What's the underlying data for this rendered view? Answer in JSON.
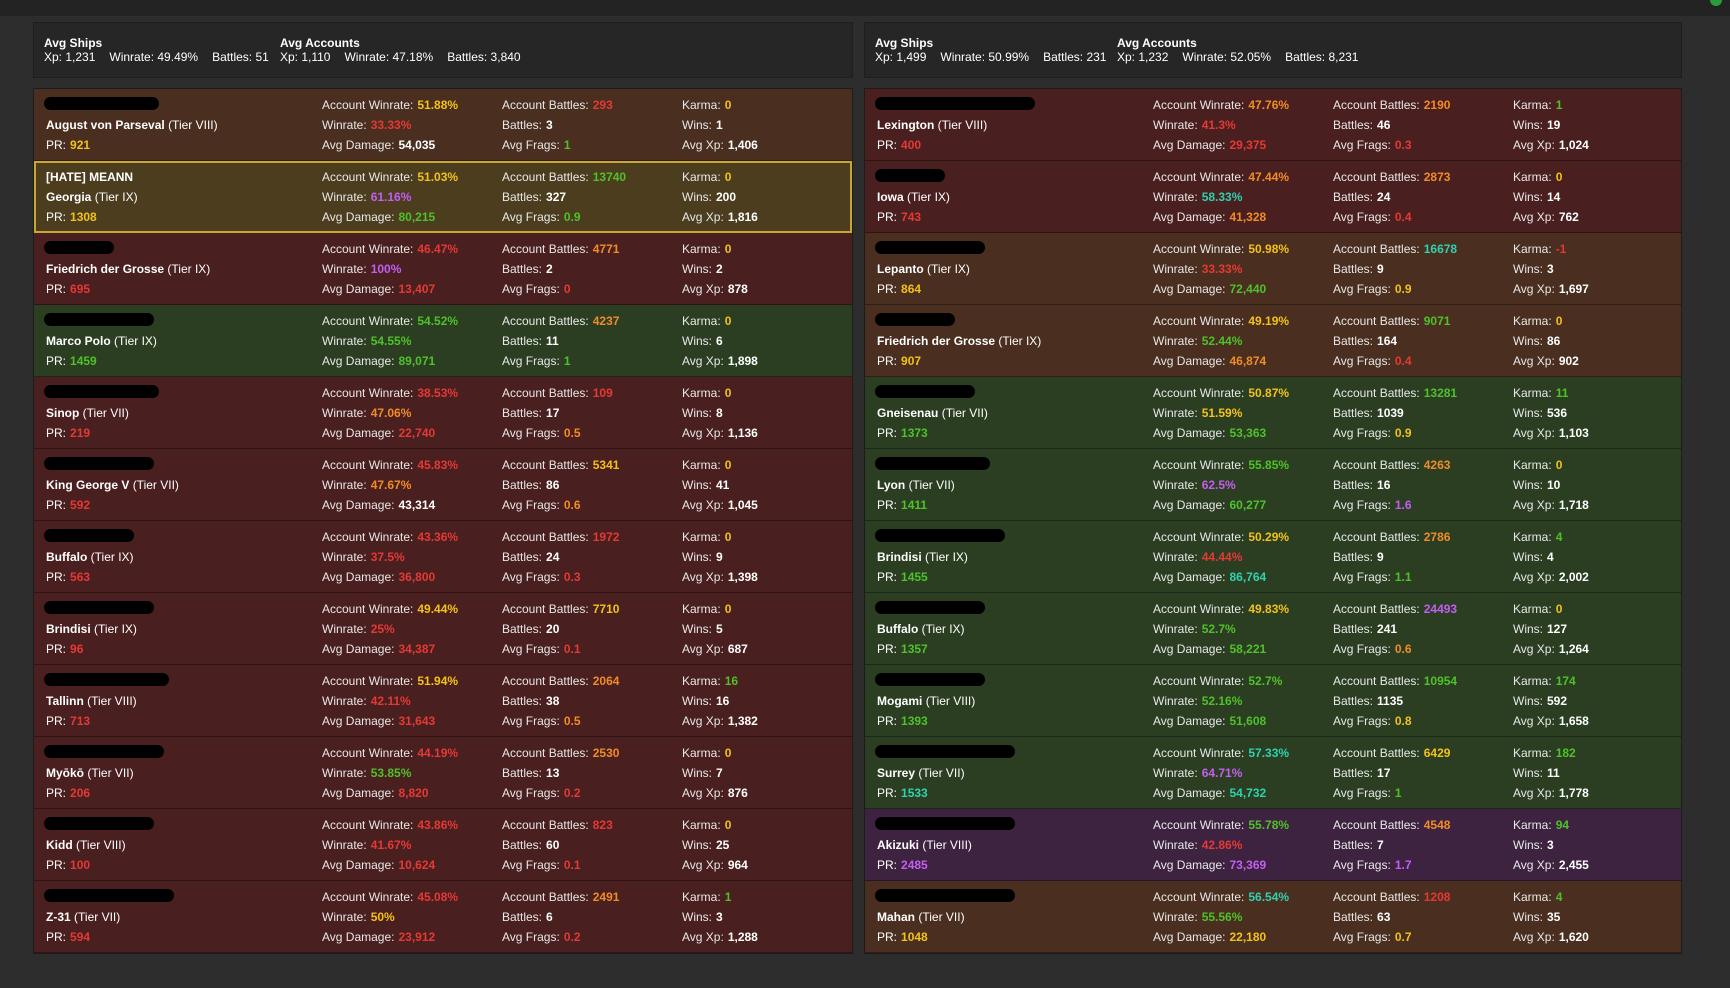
{
  "colors": {
    "red": "#e53935",
    "orange": "#f08c28",
    "yellow": "#f2c21b",
    "green": "#4fc12a",
    "teal": "#2fd1b0",
    "purple": "#c45ef2",
    "white": "#ffffff"
  },
  "labels": {
    "avg_ships": "Avg Ships",
    "avg_accounts": "Avg Accounts",
    "account_winrate": "Account Winrate:",
    "winrate": "Winrate:",
    "avg_damage": "Avg Damage:",
    "account_battles": "Account Battles:",
    "battles": "Battles:",
    "avg_frags": "Avg Frags:",
    "karma": "Karma:",
    "wins": "Wins:",
    "avg_xp": "Avg Xp:",
    "pr": "PR:"
  },
  "teams": [
    {
      "summary": {
        "ships": {
          "xp": "Xp: 1,231",
          "winrate": "Winrate: 49.49%",
          "battles": "Battles: 51"
        },
        "accounts": {
          "xp": "Xp: 1,110",
          "winrate": "Winrate: 47.18%",
          "battles": "Battles: 3,840"
        }
      },
      "players": [
        {
          "bg": "brown",
          "redact": 115,
          "clan": "",
          "ship": "August von Parseval",
          "tier": "(Tier VIII)",
          "pr": "921",
          "pr_c": "yellow",
          "awr": "51.88%",
          "awr_c": "yellow",
          "wr": "33.33%",
          "wr_c": "red",
          "dmg": "54,035",
          "dmg_c": "white",
          "ab": "293",
          "ab_c": "red",
          "b": "3",
          "fr": "1",
          "fr_c": "green",
          "karma": "0",
          "karma_c": "yellow",
          "wins": "1",
          "xp": "1,406"
        },
        {
          "bg": "olive",
          "hl": true,
          "redact": 0,
          "clan": "[HATE] MEANN",
          "ship": "Georgia",
          "tier": "(Tier IX)",
          "pr": "1308",
          "pr_c": "yellow",
          "awr": "51.03%",
          "awr_c": "yellow",
          "wr": "61.16%",
          "wr_c": "purple",
          "dmg": "80,215",
          "dmg_c": "green",
          "ab": "13740",
          "ab_c": "green",
          "b": "327",
          "fr": "0.9",
          "fr_c": "green",
          "karma": "0",
          "karma_c": "yellow",
          "wins": "200",
          "xp": "1,816"
        },
        {
          "bg": "red",
          "redact": 70,
          "clan": "",
          "ship": "Friedrich der Grosse",
          "tier": "(Tier IX)",
          "pr": "695",
          "pr_c": "red",
          "awr": "46.47%",
          "awr_c": "red",
          "wr": "100%",
          "wr_c": "purple",
          "dmg": "13,407",
          "dmg_c": "red",
          "ab": "4771",
          "ab_c": "orange",
          "b": "2",
          "fr": "0",
          "fr_c": "red",
          "karma": "0",
          "karma_c": "yellow",
          "wins": "2",
          "xp": "878"
        },
        {
          "bg": "green",
          "redact": 110,
          "clan": "",
          "ship": "Marco Polo",
          "tier": "(Tier IX)",
          "pr": "1459",
          "pr_c": "green",
          "awr": "54.52%",
          "awr_c": "green",
          "wr": "54.55%",
          "wr_c": "green",
          "dmg": "89,071",
          "dmg_c": "green",
          "ab": "4237",
          "ab_c": "orange",
          "b": "11",
          "fr": "1",
          "fr_c": "green",
          "karma": "0",
          "karma_c": "yellow",
          "wins": "6",
          "xp": "1,898"
        },
        {
          "bg": "red",
          "redact": 115,
          "clan": "",
          "ship": "Sinop",
          "tier": "(Tier VII)",
          "pr": "219",
          "pr_c": "red",
          "awr": "38.53%",
          "awr_c": "red",
          "wr": "47.06%",
          "wr_c": "orange",
          "dmg": "22,740",
          "dmg_c": "red",
          "ab": "109",
          "ab_c": "red",
          "b": "17",
          "fr": "0.5",
          "fr_c": "orange",
          "karma": "0",
          "karma_c": "yellow",
          "wins": "8",
          "xp": "1,136"
        },
        {
          "bg": "red",
          "redact": 110,
          "clan": "",
          "ship": "King George V",
          "tier": "(Tier VII)",
          "pr": "592",
          "pr_c": "red",
          "awr": "45.83%",
          "awr_c": "red",
          "wr": "47.67%",
          "wr_c": "orange",
          "dmg": "43,314",
          "dmg_c": "white",
          "ab": "5341",
          "ab_c": "yellow",
          "b": "86",
          "fr": "0.6",
          "fr_c": "orange",
          "karma": "0",
          "karma_c": "yellow",
          "wins": "41",
          "xp": "1,045"
        },
        {
          "bg": "red",
          "redact": 90,
          "clan": "",
          "ship": "Buffalo",
          "tier": "(Tier IX)",
          "pr": "563",
          "pr_c": "red",
          "awr": "43.36%",
          "awr_c": "red",
          "wr": "37.5%",
          "wr_c": "red",
          "dmg": "36,800",
          "dmg_c": "red",
          "ab": "1972",
          "ab_c": "red",
          "b": "24",
          "fr": "0.3",
          "fr_c": "red",
          "karma": "0",
          "karma_c": "yellow",
          "wins": "9",
          "xp": "1,398"
        },
        {
          "bg": "red",
          "redact": 110,
          "clan": "",
          "ship": "Brindisi",
          "tier": "(Tier IX)",
          "pr": "96",
          "pr_c": "red",
          "awr": "49.44%",
          "awr_c": "yellow",
          "wr": "25%",
          "wr_c": "red",
          "dmg": "34,387",
          "dmg_c": "red",
          "ab": "7710",
          "ab_c": "yellow",
          "b": "20",
          "fr": "0.1",
          "fr_c": "red",
          "karma": "0",
          "karma_c": "yellow",
          "wins": "5",
          "xp": "687"
        },
        {
          "bg": "red",
          "redact": 125,
          "clan": "",
          "ship": "Tallinn",
          "tier": "(Tier VIII)",
          "pr": "713",
          "pr_c": "red",
          "awr": "51.94%",
          "awr_c": "yellow",
          "wr": "42.11%",
          "wr_c": "red",
          "dmg": "31,643",
          "dmg_c": "red",
          "ab": "2064",
          "ab_c": "orange",
          "b": "38",
          "fr": "0.5",
          "fr_c": "orange",
          "karma": "16",
          "karma_c": "green",
          "wins": "16",
          "xp": "1,382"
        },
        {
          "bg": "red",
          "redact": 120,
          "clan": "",
          "ship": "Myōkō",
          "tier": "(Tier VII)",
          "pr": "206",
          "pr_c": "red",
          "awr": "44.19%",
          "awr_c": "red",
          "wr": "53.85%",
          "wr_c": "green",
          "dmg": "8,820",
          "dmg_c": "red",
          "ab": "2530",
          "ab_c": "orange",
          "b": "13",
          "fr": "0.2",
          "fr_c": "red",
          "karma": "0",
          "karma_c": "yellow",
          "wins": "7",
          "xp": "876"
        },
        {
          "bg": "red",
          "redact": 110,
          "clan": "",
          "ship": "Kidd",
          "tier": "(Tier VIII)",
          "pr": "100",
          "pr_c": "red",
          "awr": "43.86%",
          "awr_c": "red",
          "wr": "41.67%",
          "wr_c": "red",
          "dmg": "10,624",
          "dmg_c": "red",
          "ab": "823",
          "ab_c": "red",
          "b": "60",
          "fr": "0.1",
          "fr_c": "red",
          "karma": "0",
          "karma_c": "yellow",
          "wins": "25",
          "xp": "964"
        },
        {
          "bg": "red",
          "redact": 130,
          "clan": "",
          "ship": "Z-31",
          "tier": "(Tier VII)",
          "pr": "594",
          "pr_c": "red",
          "awr": "45.08%",
          "awr_c": "red",
          "wr": "50%",
          "wr_c": "yellow",
          "dmg": "23,912",
          "dmg_c": "red",
          "ab": "2491",
          "ab_c": "orange",
          "b": "6",
          "fr": "0.2",
          "fr_c": "red",
          "karma": "1",
          "karma_c": "green",
          "wins": "3",
          "xp": "1,288"
        }
      ]
    },
    {
      "summary": {
        "ships": {
          "xp": "Xp: 1,499",
          "winrate": "Winrate: 50.99%",
          "battles": "Battles: 231"
        },
        "accounts": {
          "xp": "Xp: 1,232",
          "winrate": "Winrate: 52.05%",
          "battles": "Battles: 8,231"
        }
      },
      "players": [
        {
          "bg": "red",
          "redact": 160,
          "clan": "",
          "ship": "Lexington",
          "tier": "(Tier VIII)",
          "pr": "400",
          "pr_c": "red",
          "awr": "47.76%",
          "awr_c": "orange",
          "wr": "41.3%",
          "wr_c": "red",
          "dmg": "29,375",
          "dmg_c": "red",
          "ab": "2190",
          "ab_c": "orange",
          "b": "46",
          "fr": "0.3",
          "fr_c": "red",
          "karma": "1",
          "karma_c": "green",
          "wins": "19",
          "xp": "1,024"
        },
        {
          "bg": "red",
          "redact": 70,
          "clan": "",
          "ship": "Iowa",
          "tier": "(Tier IX)",
          "pr": "743",
          "pr_c": "red",
          "awr": "47.44%",
          "awr_c": "orange",
          "wr": "58.33%",
          "wr_c": "teal",
          "dmg": "41,328",
          "dmg_c": "orange",
          "ab": "2873",
          "ab_c": "orange",
          "b": "24",
          "fr": "0.4",
          "fr_c": "red",
          "karma": "0",
          "karma_c": "yellow",
          "wins": "14",
          "xp": "762"
        },
        {
          "bg": "brown",
          "redact": 110,
          "clan": "",
          "ship": "Lepanto",
          "tier": "(Tier IX)",
          "pr": "864",
          "pr_c": "yellow",
          "awr": "50.98%",
          "awr_c": "yellow",
          "wr": "33.33%",
          "wr_c": "red",
          "dmg": "72,440",
          "dmg_c": "green",
          "ab": "16678",
          "ab_c": "teal",
          "b": "9",
          "fr": "0.9",
          "fr_c": "yellow",
          "karma": "-1",
          "karma_c": "red",
          "wins": "3",
          "xp": "1,697"
        },
        {
          "bg": "brown",
          "redact": 80,
          "clan": "",
          "ship": "Friedrich der Grosse",
          "tier": "(Tier IX)",
          "pr": "907",
          "pr_c": "yellow",
          "awr": "49.19%",
          "awr_c": "yellow",
          "wr": "52.44%",
          "wr_c": "green",
          "dmg": "46,874",
          "dmg_c": "orange",
          "ab": "9071",
          "ab_c": "green",
          "b": "164",
          "fr": "0.4",
          "fr_c": "red",
          "karma": "0",
          "karma_c": "yellow",
          "wins": "86",
          "xp": "902"
        },
        {
          "bg": "green",
          "redact": 100,
          "clan": "",
          "ship": "Gneisenau",
          "tier": "(Tier VII)",
          "pr": "1373",
          "pr_c": "green",
          "awr": "50.87%",
          "awr_c": "yellow",
          "wr": "51.59%",
          "wr_c": "yellow",
          "dmg": "53,363",
          "dmg_c": "green",
          "ab": "13281",
          "ab_c": "green",
          "b": "1039",
          "fr": "0.9",
          "fr_c": "yellow",
          "karma": "11",
          "karma_c": "green",
          "wins": "536",
          "xp": "1,103"
        },
        {
          "bg": "green",
          "redact": 115,
          "clan": "",
          "ship": "Lyon",
          "tier": "(Tier VII)",
          "pr": "1411",
          "pr_c": "green",
          "awr": "55.85%",
          "awr_c": "green",
          "wr": "62.5%",
          "wr_c": "purple",
          "dmg": "60,277",
          "dmg_c": "green",
          "ab": "4263",
          "ab_c": "orange",
          "b": "16",
          "fr": "1.6",
          "fr_c": "purple",
          "karma": "0",
          "karma_c": "yellow",
          "wins": "10",
          "xp": "1,718"
        },
        {
          "bg": "green",
          "redact": 130,
          "clan": "",
          "ship": "Brindisi",
          "tier": "(Tier IX)",
          "pr": "1455",
          "pr_c": "green",
          "awr": "50.29%",
          "awr_c": "yellow",
          "wr": "44.44%",
          "wr_c": "red",
          "dmg": "86,764",
          "dmg_c": "teal",
          "ab": "2786",
          "ab_c": "orange",
          "b": "9",
          "fr": "1.1",
          "fr_c": "green",
          "karma": "4",
          "karma_c": "green",
          "wins": "4",
          "xp": "2,002"
        },
        {
          "bg": "green",
          "redact": 110,
          "clan": "",
          "ship": "Buffalo",
          "tier": "(Tier IX)",
          "pr": "1357",
          "pr_c": "green",
          "awr": "49.83%",
          "awr_c": "yellow",
          "wr": "52.7%",
          "wr_c": "green",
          "dmg": "58,221",
          "dmg_c": "green",
          "ab": "24493",
          "ab_c": "purple",
          "b": "241",
          "fr": "0.6",
          "fr_c": "orange",
          "karma": "0",
          "karma_c": "yellow",
          "wins": "127",
          "xp": "1,264"
        },
        {
          "bg": "green",
          "redact": 110,
          "clan": "",
          "ship": "Mogami",
          "tier": "(Tier VIII)",
          "pr": "1393",
          "pr_c": "green",
          "awr": "52.7%",
          "awr_c": "green",
          "wr": "52.16%",
          "wr_c": "green",
          "dmg": "51,608",
          "dmg_c": "green",
          "ab": "10954",
          "ab_c": "green",
          "b": "1135",
          "fr": "0.8",
          "fr_c": "yellow",
          "karma": "174",
          "karma_c": "green",
          "wins": "592",
          "xp": "1,658"
        },
        {
          "bg": "green",
          "redact": 140,
          "clan": "",
          "ship": "Surrey",
          "tier": "(Tier VII)",
          "pr": "1533",
          "pr_c": "teal",
          "awr": "57.33%",
          "awr_c": "teal",
          "wr": "64.71%",
          "wr_c": "purple",
          "dmg": "54,732",
          "dmg_c": "teal",
          "ab": "6429",
          "ab_c": "yellow",
          "b": "17",
          "fr": "1",
          "fr_c": "green",
          "karma": "182",
          "karma_c": "green",
          "wins": "11",
          "xp": "1,778"
        },
        {
          "bg": "purple",
          "redact": 140,
          "clan": "",
          "ship": "Akizuki",
          "tier": "(Tier VIII)",
          "pr": "2485",
          "pr_c": "purple",
          "awr": "55.78%",
          "awr_c": "green",
          "wr": "42.86%",
          "wr_c": "red",
          "dmg": "73,369",
          "dmg_c": "purple",
          "ab": "4548",
          "ab_c": "orange",
          "b": "7",
          "fr": "1.7",
          "fr_c": "purple",
          "karma": "94",
          "karma_c": "green",
          "wins": "3",
          "xp": "2,455"
        },
        {
          "bg": "brown",
          "redact": 140,
          "clan": "",
          "ship": "Mahan",
          "tier": "(Tier VII)",
          "pr": "1048",
          "pr_c": "yellow",
          "awr": "56.54%",
          "awr_c": "teal",
          "wr": "55.56%",
          "wr_c": "green",
          "dmg": "22,180",
          "dmg_c": "yellow",
          "ab": "1208",
          "ab_c": "red",
          "b": "63",
          "fr": "0.7",
          "fr_c": "yellow",
          "karma": "4",
          "karma_c": "green",
          "wins": "35",
          "xp": "1,620"
        }
      ]
    }
  ]
}
